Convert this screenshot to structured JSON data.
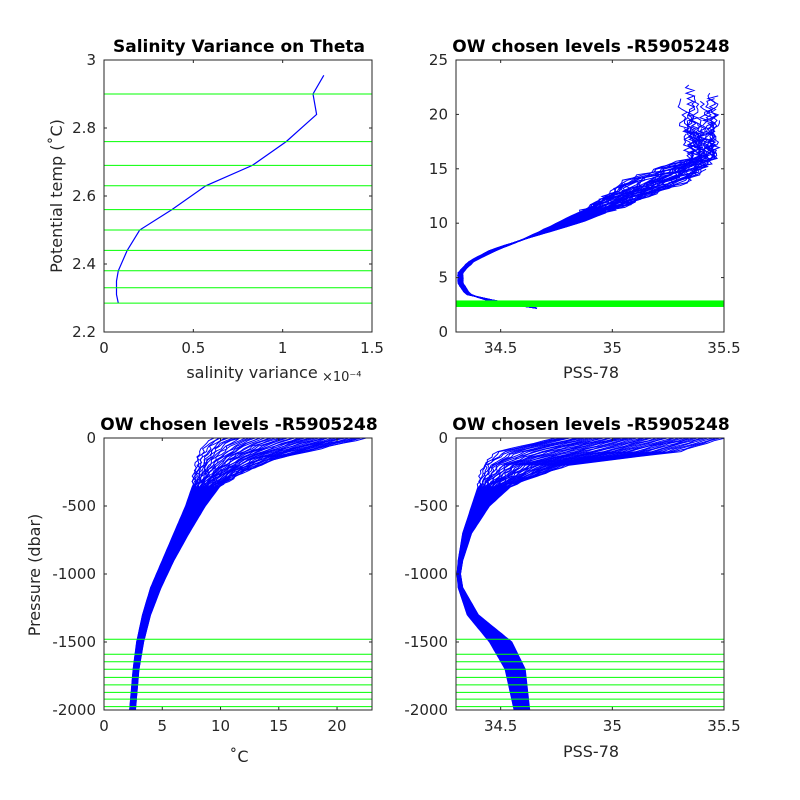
{
  "colors": {
    "profile": "#0000ff",
    "level": "#00ff00",
    "axis": "#262626"
  },
  "chart_data": [
    {
      "id": "tl",
      "type": "line",
      "title": "Salinity Variance on Theta",
      "xlabel": "salinity variance",
      "x_exponent": "×10⁻⁴",
      "ylabel": "Potential temp (˚C)",
      "xlim": [
        0,
        1.5
      ],
      "ylim": [
        2.2,
        3.0
      ],
      "xticks": [
        0,
        0.5,
        1,
        1.5
      ],
      "xtick_labels": [
        "0",
        "0.5",
        "1",
        "1.5"
      ],
      "yticks": [
        2.2,
        2.4,
        2.6,
        2.8,
        3.0
      ],
      "ytick_labels": [
        "2.2",
        "2.4",
        "2.6",
        "2.8",
        "3"
      ],
      "series": [
        {
          "x": [
            0.08,
            0.07,
            0.07,
            0.08,
            0.13,
            0.2,
            0.38,
            0.57,
            0.83,
            1.02,
            1.19,
            1.17,
            1.23
          ],
          "y": [
            2.285,
            2.31,
            2.35,
            2.38,
            2.44,
            2.5,
            2.56,
            2.63,
            2.69,
            2.76,
            2.84,
            2.9,
            2.955
          ]
        }
      ],
      "level_lines": [
        2.285,
        2.33,
        2.38,
        2.44,
        2.5,
        2.56,
        2.63,
        2.69,
        2.76,
        2.9
      ]
    },
    {
      "id": "tr",
      "type": "line",
      "title": "OW chosen levels -R5905248",
      "xlabel": "PSS-78",
      "ylabel": "",
      "xlim": [
        34.3,
        35.5
      ],
      "ylim": [
        0,
        25
      ],
      "xticks": [
        34.5,
        35,
        35.5
      ],
      "xtick_labels": [
        "34.5",
        "35",
        "35.5"
      ],
      "yticks": [
        0,
        5,
        10,
        15,
        20,
        25
      ],
      "ytick_labels": [
        "0",
        "5",
        "10",
        "15",
        "20",
        "25"
      ],
      "profile_envelope": {
        "y": [
          2.2,
          2.6,
          3.0,
          3.5,
          4.5,
          5.5,
          6.5,
          7.5,
          8.5,
          10,
          12,
          14,
          16
        ],
        "x_low": [
          34.66,
          34.55,
          34.45,
          34.34,
          34.31,
          34.31,
          34.36,
          34.45,
          34.6,
          34.85,
          35.1,
          35.35,
          35.46
        ],
        "x_high": [
          34.66,
          34.52,
          34.42,
          34.36,
          34.33,
          34.33,
          34.38,
          34.48,
          34.6,
          34.75,
          34.95,
          35.1,
          35.4
        ]
      },
      "level_band": [
        2.3,
        2.9
      ]
    },
    {
      "id": "bl",
      "type": "line",
      "title": "OW chosen levels -R5905248",
      "xlabel": "˚C",
      "ylabel": "Pressure (dbar)",
      "xlim": [
        0,
        23
      ],
      "ylim": [
        -2000,
        0
      ],
      "xticks": [
        0,
        5,
        10,
        15,
        20
      ],
      "xtick_labels": [
        "0",
        "5",
        "10",
        "15",
        "20"
      ],
      "yticks": [
        -2000,
        -1500,
        -1000,
        -500,
        0
      ],
      "ytick_labels": [
        "-2000",
        "-1500",
        "-1000",
        "-500",
        "0"
      ],
      "profile_envelope": {
        "y": [
          0,
          -50,
          -150,
          -250,
          -350,
          -500,
          -700,
          -900,
          -1100,
          -1300,
          -1500,
          -1700,
          -2000
        ],
        "x_left": [
          9.5,
          8.5,
          8.0,
          7.8,
          7.6,
          7.0,
          6.0,
          5.0,
          4.0,
          3.3,
          2.8,
          2.5,
          2.2
        ],
        "x_right": [
          22.5,
          20.0,
          15.0,
          12.0,
          10.0,
          8.7,
          7.3,
          6.0,
          4.9,
          4.0,
          3.4,
          3.0,
          2.7
        ]
      },
      "level_lines": [
        -1480,
        -1590,
        -1645,
        -1700,
        -1760,
        -1815,
        -1870,
        -1920,
        -1975
      ]
    },
    {
      "id": "br",
      "type": "line",
      "title": "OW chosen levels -R5905248",
      "xlabel": "PSS-78",
      "ylabel": "",
      "xlim": [
        34.3,
        35.5
      ],
      "ylim": [
        -2000,
        0
      ],
      "xticks": [
        34.5,
        35,
        35.5
      ],
      "xtick_labels": [
        "34.5",
        "35",
        "35.5"
      ],
      "yticks": [
        -2000,
        -1500,
        -1000,
        -500,
        0
      ],
      "ytick_labels": [
        "-2000",
        "-1500",
        "-1000",
        "-500",
        "0"
      ],
      "profile_envelope": {
        "y": [
          0,
          -100,
          -200,
          -350,
          -500,
          -700,
          -900,
          -1000,
          -1100,
          -1300,
          -1500,
          -1700,
          -2000
        ],
        "x_left": [
          34.75,
          34.48,
          34.42,
          34.4,
          34.37,
          34.33,
          34.31,
          34.305,
          34.31,
          34.35,
          34.45,
          34.52,
          34.56
        ],
        "x_right": [
          35.5,
          35.3,
          34.8,
          34.55,
          34.45,
          34.37,
          34.33,
          34.32,
          34.33,
          34.4,
          34.55,
          34.61,
          34.63
        ]
      },
      "level_lines": [
        -1480,
        -1590,
        -1645,
        -1700,
        -1760,
        -1815,
        -1870,
        -1920,
        -1975
      ]
    }
  ]
}
